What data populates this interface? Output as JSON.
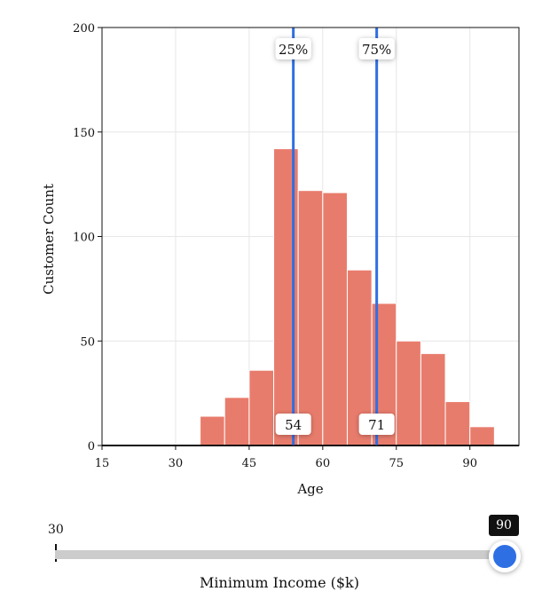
{
  "chart_data": {
    "type": "bar",
    "xlabel": "Age",
    "ylabel": "Customer Count",
    "xlim": [
      15,
      100
    ],
    "ylim": [
      0,
      200
    ],
    "x_ticks": [
      15,
      30,
      45,
      60,
      75,
      90
    ],
    "y_ticks": [
      0,
      50,
      100,
      150,
      200
    ],
    "grid": true,
    "bin_width": 5,
    "bins": [
      {
        "start": 35,
        "count": 14
      },
      {
        "start": 40,
        "count": 23
      },
      {
        "start": 45,
        "count": 36
      },
      {
        "start": 50,
        "count": 142
      },
      {
        "start": 55,
        "count": 122
      },
      {
        "start": 60,
        "count": 121
      },
      {
        "start": 65,
        "count": 84
      },
      {
        "start": 70,
        "count": 68
      },
      {
        "start": 75,
        "count": 50
      },
      {
        "start": 80,
        "count": 44
      },
      {
        "start": 85,
        "count": 21
      },
      {
        "start": 90,
        "count": 9
      }
    ],
    "bar_color": "#e87c6c",
    "quantiles": [
      {
        "label": "25%",
        "value": 54,
        "value_label": "54"
      },
      {
        "label": "75%",
        "value": 71,
        "value_label": "71"
      }
    ],
    "quantile_color": "#2f6fe4"
  },
  "slider": {
    "title": "Minimum Income ($k)",
    "min_label": "30",
    "min": 30,
    "max": 90,
    "value": 90,
    "value_label": "90",
    "thumb_color": "#2f6fe4"
  }
}
